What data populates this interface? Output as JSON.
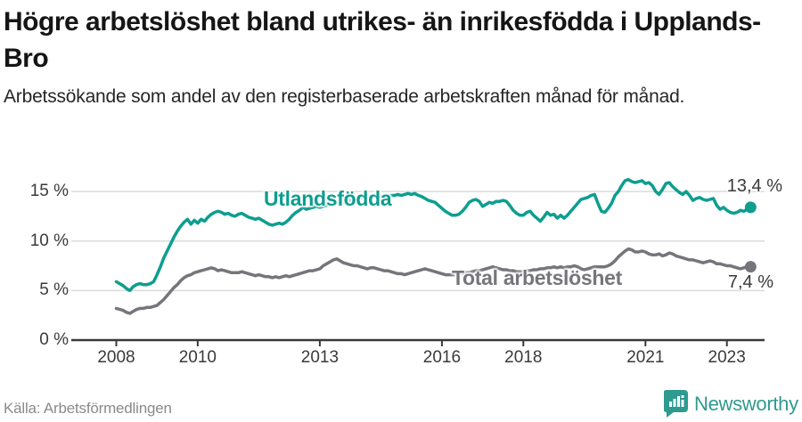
{
  "header": {
    "title": "Högre arbetslöshet bland utrikes- än inrikesfödda i Upplands-Bro",
    "subtitle": "Arbetssökande som andel av den registerbaserade arbetskraften månad för månad."
  },
  "footer": {
    "source": "Källa: Arbetsförmedlingen",
    "brand_name": "Newsworthy",
    "logo_icon": "bar-chart-speech-bubble-icon"
  },
  "colors": {
    "series_foreign_born": "#0d9e90",
    "series_total": "#76757b",
    "axis": "#3a3a3a",
    "grid": "#dbdbdb",
    "title_text": "#151515",
    "muted_text": "#8a8a8a",
    "brand_teal": "#2f9a90"
  },
  "chart_data": {
    "type": "line",
    "x_unit": "year",
    "x_start_year": 2008,
    "x_interval": "monthly",
    "x_end": "2023 (Aug)",
    "ylim": [
      0,
      16.5
    ],
    "grid": "horizontal",
    "legend_position": "inline-labels",
    "yticks": [
      {
        "value": 0,
        "label": "0 %"
      },
      {
        "value": 5,
        "label": "5 %"
      },
      {
        "value": 10,
        "label": "10 %"
      },
      {
        "value": 15,
        "label": "15 %"
      }
    ],
    "xticks": [
      {
        "value": 2008,
        "label": "2008"
      },
      {
        "value": 2010,
        "label": "2010"
      },
      {
        "value": 2013,
        "label": "2013"
      },
      {
        "value": 2016,
        "label": "2016"
      },
      {
        "value": 2018,
        "label": "2018"
      },
      {
        "value": 2021,
        "label": "2021"
      },
      {
        "value": 2023,
        "label": "2023"
      }
    ],
    "series": [
      {
        "name": "Utlandsfödda",
        "color": "#0d9e90",
        "end_label": "13,4 %",
        "last_value": 13.4,
        "values": [
          5.9,
          5.7,
          5.5,
          5.2,
          5.0,
          5.4,
          5.6,
          5.7,
          5.6,
          5.6,
          5.7,
          5.9,
          6.6,
          7.4,
          8.3,
          9.0,
          9.7,
          10.4,
          11.0,
          11.5,
          11.9,
          12.2,
          11.7,
          12.1,
          11.8,
          12.2,
          12.0,
          12.4,
          12.7,
          12.9,
          13.0,
          12.9,
          12.7,
          12.8,
          12.6,
          12.5,
          12.7,
          12.8,
          12.6,
          12.4,
          12.3,
          12.2,
          12.3,
          12.1,
          11.9,
          11.7,
          11.6,
          11.7,
          11.8,
          11.7,
          11.9,
          12.2,
          12.6,
          12.9,
          13.1,
          13.4,
          13.2,
          13.3,
          13.4,
          13.5,
          13.4,
          13.5,
          13.6,
          13.8,
          13.7,
          13.9,
          14.0,
          13.9,
          14.0,
          14.1,
          14.2,
          14.3,
          14.3,
          14.4,
          14.5,
          14.4,
          14.5,
          14.6,
          14.5,
          14.6,
          14.5,
          14.6,
          14.6,
          14.7,
          14.6,
          14.7,
          14.8,
          14.7,
          14.8,
          14.6,
          14.5,
          14.3,
          14.1,
          14.0,
          13.9,
          13.6,
          13.3,
          13.0,
          12.8,
          12.6,
          12.6,
          12.7,
          13.0,
          13.4,
          13.9,
          14.1,
          14.2,
          14.0,
          13.5,
          13.7,
          13.9,
          13.8,
          14.0,
          14.0,
          14.1,
          14.0,
          13.6,
          13.1,
          12.8,
          12.6,
          12.6,
          12.9,
          13.0,
          12.6,
          12.3,
          12.0,
          12.4,
          12.9,
          12.6,
          12.7,
          12.3,
          12.6,
          12.3,
          12.6,
          13.0,
          13.4,
          13.8,
          14.2,
          14.3,
          14.4,
          14.6,
          14.7,
          13.8,
          13.0,
          12.9,
          13.3,
          13.8,
          14.6,
          15.0,
          15.6,
          16.1,
          16.2,
          16.0,
          15.9,
          16.0,
          16.1,
          15.8,
          15.9,
          15.6,
          15.0,
          14.7,
          15.2,
          15.8,
          15.9,
          15.5,
          15.2,
          14.9,
          14.7,
          15.0,
          14.6,
          14.1,
          14.3,
          14.4,
          14.2,
          14.1,
          14.2,
          14.3,
          13.6,
          13.2,
          13.4,
          13.1,
          12.9,
          12.8,
          12.9,
          13.1,
          13.0,
          13.2,
          13.4
        ]
      },
      {
        "name": "Total arbetslöshet",
        "color": "#76757b",
        "end_label": "7,4 %",
        "last_value": 7.4,
        "values": [
          3.2,
          3.1,
          3.0,
          2.8,
          2.7,
          2.9,
          3.1,
          3.2,
          3.2,
          3.3,
          3.3,
          3.4,
          3.5,
          3.8,
          4.1,
          4.5,
          4.9,
          5.3,
          5.6,
          6.0,
          6.3,
          6.5,
          6.6,
          6.8,
          6.9,
          7.0,
          7.1,
          7.2,
          7.3,
          7.2,
          7.0,
          7.1,
          7.0,
          6.9,
          6.8,
          6.8,
          6.8,
          6.9,
          6.8,
          6.7,
          6.6,
          6.5,
          6.6,
          6.5,
          6.4,
          6.4,
          6.3,
          6.4,
          6.3,
          6.4,
          6.5,
          6.4,
          6.5,
          6.6,
          6.7,
          6.8,
          6.9,
          7.0,
          7.0,
          7.1,
          7.2,
          7.5,
          7.7,
          7.9,
          8.1,
          8.2,
          8.0,
          7.8,
          7.7,
          7.6,
          7.5,
          7.5,
          7.4,
          7.3,
          7.2,
          7.3,
          7.3,
          7.2,
          7.1,
          7.0,
          7.0,
          6.9,
          6.8,
          6.7,
          6.7,
          6.6,
          6.7,
          6.8,
          6.9,
          7.0,
          7.1,
          7.2,
          7.1,
          7.0,
          6.9,
          6.8,
          6.7,
          6.6,
          6.6,
          6.6,
          6.6,
          6.7,
          6.7,
          6.8,
          6.8,
          6.9,
          7.0,
          7.0,
          7.1,
          7.2,
          7.3,
          7.4,
          7.3,
          7.2,
          7.1,
          7.1,
          7.0,
          7.0,
          6.9,
          6.9,
          6.9,
          7.0,
          7.0,
          7.1,
          7.1,
          7.2,
          7.2,
          7.3,
          7.3,
          7.4,
          7.3,
          7.4,
          7.3,
          7.4,
          7.4,
          7.5,
          7.4,
          7.2,
          7.1,
          7.2,
          7.3,
          7.4,
          7.4,
          7.4,
          7.4,
          7.5,
          7.7,
          8.0,
          8.4,
          8.7,
          9.0,
          9.2,
          9.1,
          8.9,
          8.9,
          9.0,
          8.9,
          8.7,
          8.6,
          8.6,
          8.7,
          8.5,
          8.6,
          8.8,
          8.7,
          8.5,
          8.4,
          8.3,
          8.2,
          8.1,
          8.1,
          8.0,
          7.9,
          7.8,
          7.9,
          8.0,
          7.9,
          7.7,
          7.7,
          7.6,
          7.5,
          7.5,
          7.4,
          7.3,
          7.2,
          7.3,
          7.4,
          7.4
        ]
      }
    ]
  }
}
